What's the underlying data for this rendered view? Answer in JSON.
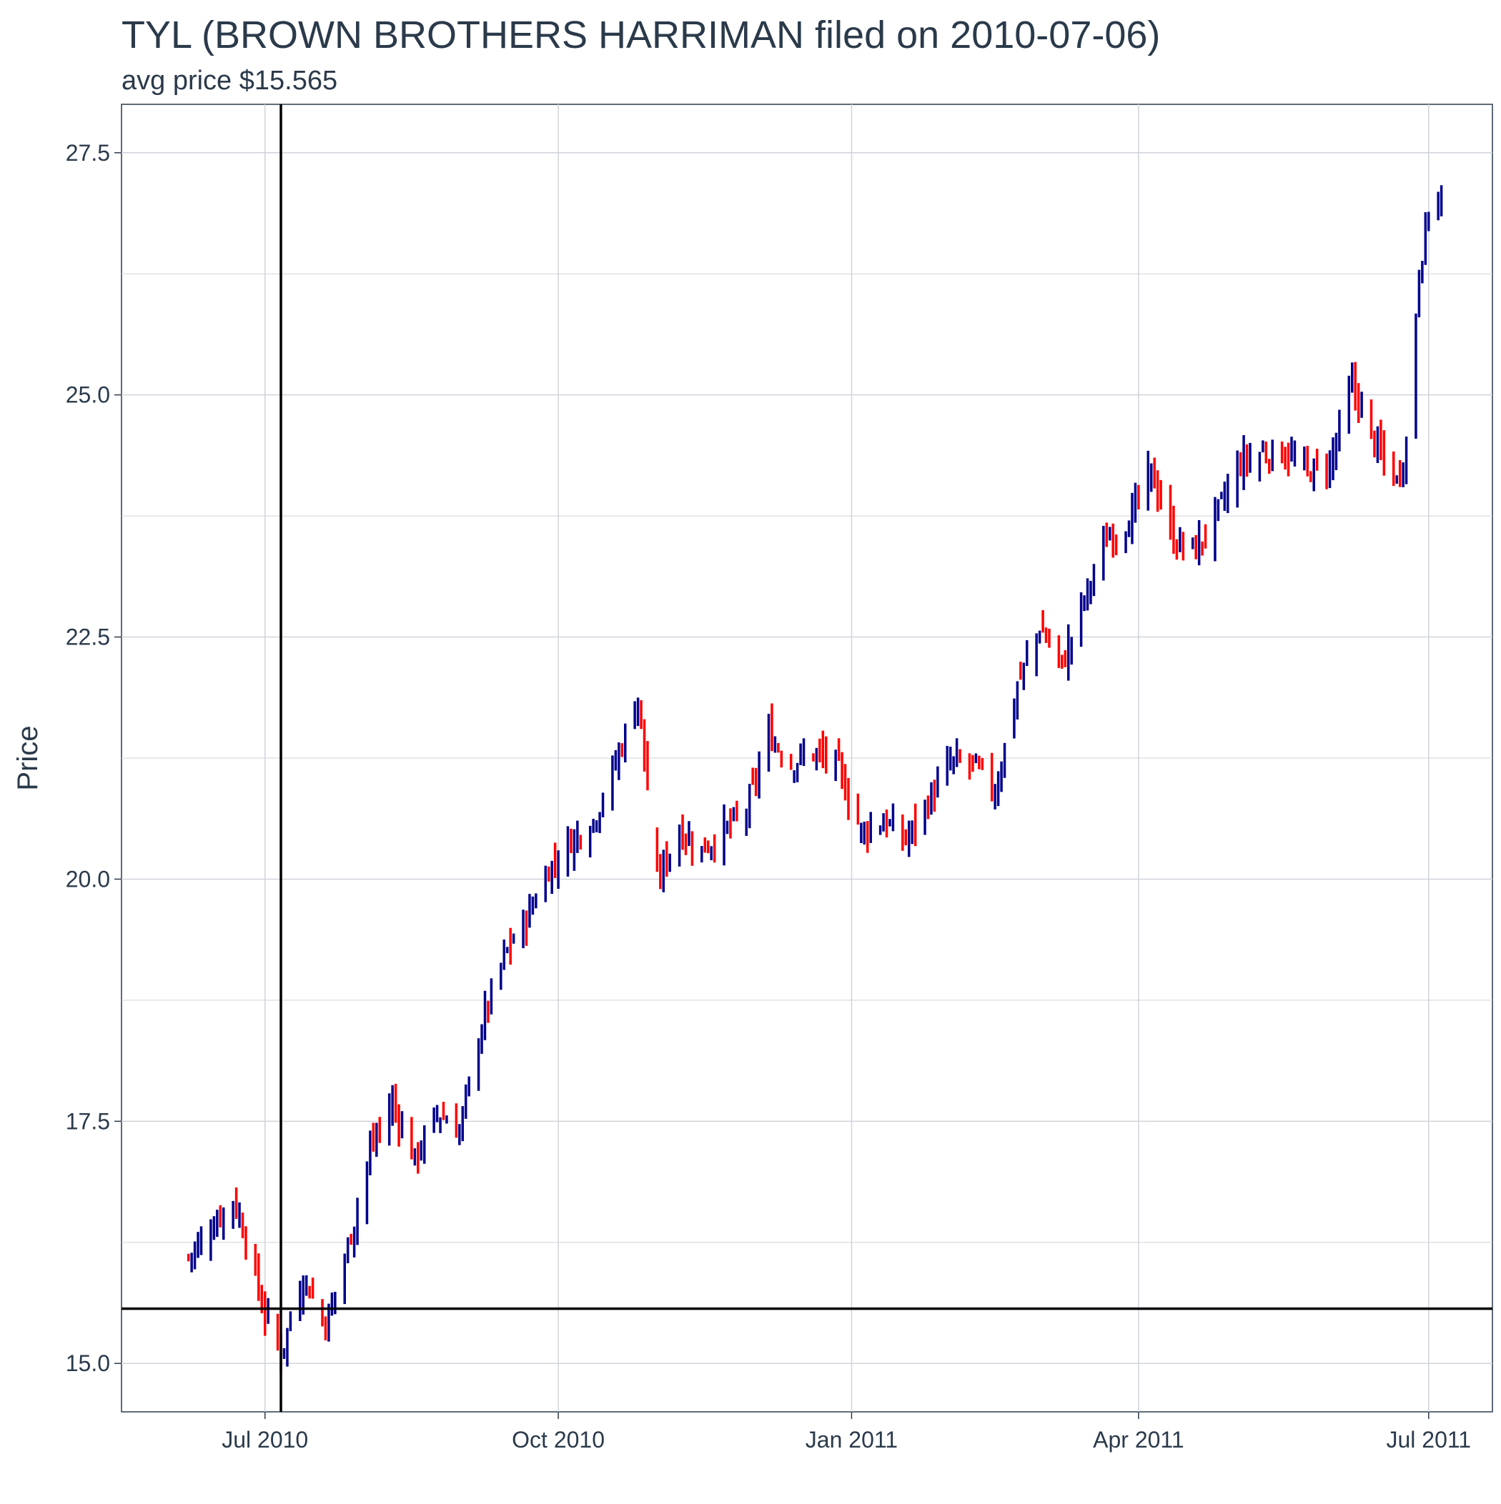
{
  "chart_data": {
    "type": "ohlc",
    "title": "TYL (BROWN BROTHERS HARRIMAN filed on 2010-07-06)",
    "subtitle": "avg price $15.565",
    "ylabel": "Price",
    "xlabel": "",
    "ylim": [
      14.5,
      28.0
    ],
    "xlim": [
      "2010-05-17",
      "2011-07-21"
    ],
    "y_ticks": [
      15.0,
      17.5,
      20.0,
      22.5,
      25.0,
      27.5
    ],
    "y_tick_labels": [
      "15.0",
      "17.5",
      "20.0",
      "22.5",
      "25.0",
      "27.5"
    ],
    "x_ticks": [
      "2010-07-01",
      "2010-10-01",
      "2011-01-01",
      "2011-04-01",
      "2011-07-01"
    ],
    "x_tick_labels": [
      "Jul 2010",
      "Oct 2010",
      "Jan 2011",
      "Apr 2011",
      "Jul 2011"
    ],
    "filing_date": "2010-07-06",
    "avg_price": 15.565,
    "colors": {
      "up": "#00008b",
      "down": "#ff0000",
      "reference_line": "#000000",
      "grid": "#cfd3da",
      "text": "#2b3a4a"
    },
    "grid": true,
    "legend": "none",
    "anchors": [
      [
        "2010-06-07",
        16.1
      ],
      [
        "2010-06-14",
        16.4
      ],
      [
        "2010-06-21",
        16.7
      ],
      [
        "2010-06-25",
        16.3
      ],
      [
        "2010-06-30",
        15.6
      ],
      [
        "2010-07-06",
        15.1
      ],
      [
        "2010-07-13",
        15.9
      ],
      [
        "2010-07-20",
        15.4
      ],
      [
        "2010-07-27",
        16.2
      ],
      [
        "2010-08-03",
        17.2
      ],
      [
        "2010-08-10",
        17.7
      ],
      [
        "2010-08-17",
        17.1
      ],
      [
        "2010-08-24",
        17.6
      ],
      [
        "2010-08-31",
        17.4
      ],
      [
        "2010-09-07",
        18.5
      ],
      [
        "2010-09-14",
        19.2
      ],
      [
        "2010-09-21",
        19.6
      ],
      [
        "2010-09-28",
        20.1
      ],
      [
        "2010-10-05",
        20.4
      ],
      [
        "2010-10-12",
        20.6
      ],
      [
        "2010-10-19",
        21.2
      ],
      [
        "2010-10-26",
        21.9
      ],
      [
        "2010-11-01",
        20.0
      ],
      [
        "2010-11-08",
        20.5
      ],
      [
        "2010-11-15",
        20.3
      ],
      [
        "2010-11-22",
        20.5
      ],
      [
        "2010-11-29",
        20.7
      ],
      [
        "2010-12-06",
        21.5
      ],
      [
        "2010-12-13",
        21.2
      ],
      [
        "2010-12-20",
        21.3
      ],
      [
        "2010-12-27",
        21.2
      ],
      [
        "2011-01-04",
        20.5
      ],
      [
        "2011-01-11",
        20.6
      ],
      [
        "2011-01-18",
        20.4
      ],
      [
        "2011-01-25",
        20.8
      ],
      [
        "2011-02-01",
        21.2
      ],
      [
        "2011-02-08",
        21.2
      ],
      [
        "2011-02-15",
        20.9
      ],
      [
        "2011-02-22",
        22.0
      ],
      [
        "2011-03-01",
        22.6
      ],
      [
        "2011-03-08",
        22.2
      ],
      [
        "2011-03-15",
        22.9
      ],
      [
        "2011-03-22",
        23.5
      ],
      [
        "2011-03-29",
        23.7
      ],
      [
        "2011-04-05",
        24.2
      ],
      [
        "2011-04-12",
        23.5
      ],
      [
        "2011-04-19",
        23.4
      ],
      [
        "2011-04-26",
        23.8
      ],
      [
        "2011-05-03",
        24.3
      ],
      [
        "2011-05-10",
        24.4
      ],
      [
        "2011-05-17",
        24.4
      ],
      [
        "2011-05-24",
        24.2
      ],
      [
        "2011-05-31",
        24.3
      ],
      [
        "2011-06-07",
        25.1
      ],
      [
        "2011-06-14",
        24.5
      ],
      [
        "2011-06-21",
        24.1
      ],
      [
        "2011-06-24",
        24.5
      ],
      [
        "2011-06-28",
        26.3
      ],
      [
        "2011-07-01",
        26.9
      ],
      [
        "2011-07-05",
        27.1
      ]
    ],
    "gaps": [
      [
        "2010-10-30",
        "2010-11-01"
      ]
    ]
  }
}
